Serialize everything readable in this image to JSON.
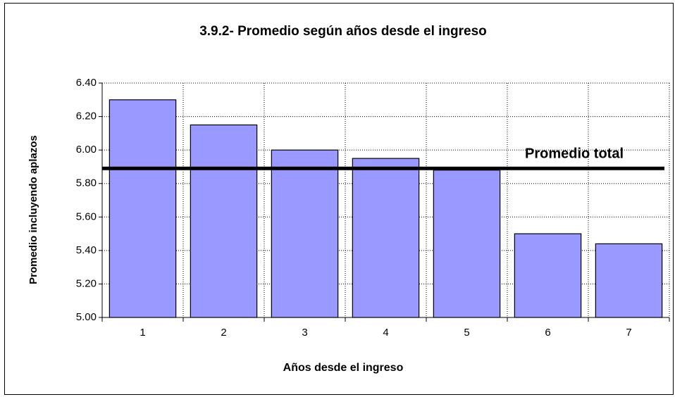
{
  "chart_data": {
    "type": "bar",
    "title": "3.9.2- Promedio según años desde el ingreso",
    "x_label": "Años desde el ingreso",
    "y_label": "Promedio incluyendo aplazos",
    "categories": [
      "1",
      "2",
      "3",
      "4",
      "5",
      "6",
      "7"
    ],
    "values": [
      6.3,
      6.15,
      6.0,
      5.95,
      5.88,
      5.5,
      5.44
    ],
    "color": "#9999ff",
    "reference_line": {
      "value": 5.89,
      "label": "Promedio total"
    },
    "ylim": [
      5.0,
      6.4
    ],
    "yticks": [
      {
        "value": 5.0,
        "label": "5.00"
      },
      {
        "value": 5.2,
        "label": "5.20"
      },
      {
        "value": 5.4,
        "label": "5.40"
      },
      {
        "value": 5.6,
        "label": "5.60"
      },
      {
        "value": 5.8,
        "label": "5.80"
      },
      {
        "value": 6.0,
        "label": "6.00"
      },
      {
        "value": 6.2,
        "label": "6.20"
      },
      {
        "value": 6.4,
        "label": "6.40"
      }
    ],
    "grid": true
  }
}
